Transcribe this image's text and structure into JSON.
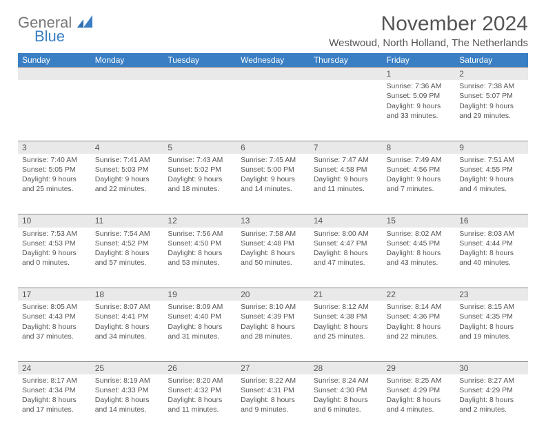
{
  "logo": {
    "word1": "General",
    "word2": "Blue",
    "gray": "#777777",
    "blue": "#3a7fc4"
  },
  "title": "November 2024",
  "location": "Westwoud, North Holland, The Netherlands",
  "colors": {
    "header_bg": "#3a7fc4",
    "header_fg": "#ffffff",
    "daynum_bg": "#e9e9e9",
    "daynum_border": "#888888",
    "text": "#555555",
    "background": "#ffffff"
  },
  "weekdays": [
    "Sunday",
    "Monday",
    "Tuesday",
    "Wednesday",
    "Thursday",
    "Friday",
    "Saturday"
  ],
  "weeks": [
    [
      null,
      null,
      null,
      null,
      null,
      {
        "d": "1",
        "sr": "Sunrise: 7:36 AM",
        "ss": "Sunset: 5:09 PM",
        "dl1": "Daylight: 9 hours",
        "dl2": "and 33 minutes."
      },
      {
        "d": "2",
        "sr": "Sunrise: 7:38 AM",
        "ss": "Sunset: 5:07 PM",
        "dl1": "Daylight: 9 hours",
        "dl2": "and 29 minutes."
      }
    ],
    [
      {
        "d": "3",
        "sr": "Sunrise: 7:40 AM",
        "ss": "Sunset: 5:05 PM",
        "dl1": "Daylight: 9 hours",
        "dl2": "and 25 minutes."
      },
      {
        "d": "4",
        "sr": "Sunrise: 7:41 AM",
        "ss": "Sunset: 5:03 PM",
        "dl1": "Daylight: 9 hours",
        "dl2": "and 22 minutes."
      },
      {
        "d": "5",
        "sr": "Sunrise: 7:43 AM",
        "ss": "Sunset: 5:02 PM",
        "dl1": "Daylight: 9 hours",
        "dl2": "and 18 minutes."
      },
      {
        "d": "6",
        "sr": "Sunrise: 7:45 AM",
        "ss": "Sunset: 5:00 PM",
        "dl1": "Daylight: 9 hours",
        "dl2": "and 14 minutes."
      },
      {
        "d": "7",
        "sr": "Sunrise: 7:47 AM",
        "ss": "Sunset: 4:58 PM",
        "dl1": "Daylight: 9 hours",
        "dl2": "and 11 minutes."
      },
      {
        "d": "8",
        "sr": "Sunrise: 7:49 AM",
        "ss": "Sunset: 4:56 PM",
        "dl1": "Daylight: 9 hours",
        "dl2": "and 7 minutes."
      },
      {
        "d": "9",
        "sr": "Sunrise: 7:51 AM",
        "ss": "Sunset: 4:55 PM",
        "dl1": "Daylight: 9 hours",
        "dl2": "and 4 minutes."
      }
    ],
    [
      {
        "d": "10",
        "sr": "Sunrise: 7:53 AM",
        "ss": "Sunset: 4:53 PM",
        "dl1": "Daylight: 9 hours",
        "dl2": "and 0 minutes."
      },
      {
        "d": "11",
        "sr": "Sunrise: 7:54 AM",
        "ss": "Sunset: 4:52 PM",
        "dl1": "Daylight: 8 hours",
        "dl2": "and 57 minutes."
      },
      {
        "d": "12",
        "sr": "Sunrise: 7:56 AM",
        "ss": "Sunset: 4:50 PM",
        "dl1": "Daylight: 8 hours",
        "dl2": "and 53 minutes."
      },
      {
        "d": "13",
        "sr": "Sunrise: 7:58 AM",
        "ss": "Sunset: 4:48 PM",
        "dl1": "Daylight: 8 hours",
        "dl2": "and 50 minutes."
      },
      {
        "d": "14",
        "sr": "Sunrise: 8:00 AM",
        "ss": "Sunset: 4:47 PM",
        "dl1": "Daylight: 8 hours",
        "dl2": "and 47 minutes."
      },
      {
        "d": "15",
        "sr": "Sunrise: 8:02 AM",
        "ss": "Sunset: 4:45 PM",
        "dl1": "Daylight: 8 hours",
        "dl2": "and 43 minutes."
      },
      {
        "d": "16",
        "sr": "Sunrise: 8:03 AM",
        "ss": "Sunset: 4:44 PM",
        "dl1": "Daylight: 8 hours",
        "dl2": "and 40 minutes."
      }
    ],
    [
      {
        "d": "17",
        "sr": "Sunrise: 8:05 AM",
        "ss": "Sunset: 4:43 PM",
        "dl1": "Daylight: 8 hours",
        "dl2": "and 37 minutes."
      },
      {
        "d": "18",
        "sr": "Sunrise: 8:07 AM",
        "ss": "Sunset: 4:41 PM",
        "dl1": "Daylight: 8 hours",
        "dl2": "and 34 minutes."
      },
      {
        "d": "19",
        "sr": "Sunrise: 8:09 AM",
        "ss": "Sunset: 4:40 PM",
        "dl1": "Daylight: 8 hours",
        "dl2": "and 31 minutes."
      },
      {
        "d": "20",
        "sr": "Sunrise: 8:10 AM",
        "ss": "Sunset: 4:39 PM",
        "dl1": "Daylight: 8 hours",
        "dl2": "and 28 minutes."
      },
      {
        "d": "21",
        "sr": "Sunrise: 8:12 AM",
        "ss": "Sunset: 4:38 PM",
        "dl1": "Daylight: 8 hours",
        "dl2": "and 25 minutes."
      },
      {
        "d": "22",
        "sr": "Sunrise: 8:14 AM",
        "ss": "Sunset: 4:36 PM",
        "dl1": "Daylight: 8 hours",
        "dl2": "and 22 minutes."
      },
      {
        "d": "23",
        "sr": "Sunrise: 8:15 AM",
        "ss": "Sunset: 4:35 PM",
        "dl1": "Daylight: 8 hours",
        "dl2": "and 19 minutes."
      }
    ],
    [
      {
        "d": "24",
        "sr": "Sunrise: 8:17 AM",
        "ss": "Sunset: 4:34 PM",
        "dl1": "Daylight: 8 hours",
        "dl2": "and 17 minutes."
      },
      {
        "d": "25",
        "sr": "Sunrise: 8:19 AM",
        "ss": "Sunset: 4:33 PM",
        "dl1": "Daylight: 8 hours",
        "dl2": "and 14 minutes."
      },
      {
        "d": "26",
        "sr": "Sunrise: 8:20 AM",
        "ss": "Sunset: 4:32 PM",
        "dl1": "Daylight: 8 hours",
        "dl2": "and 11 minutes."
      },
      {
        "d": "27",
        "sr": "Sunrise: 8:22 AM",
        "ss": "Sunset: 4:31 PM",
        "dl1": "Daylight: 8 hours",
        "dl2": "and 9 minutes."
      },
      {
        "d": "28",
        "sr": "Sunrise: 8:24 AM",
        "ss": "Sunset: 4:30 PM",
        "dl1": "Daylight: 8 hours",
        "dl2": "and 6 minutes."
      },
      {
        "d": "29",
        "sr": "Sunrise: 8:25 AM",
        "ss": "Sunset: 4:29 PM",
        "dl1": "Daylight: 8 hours",
        "dl2": "and 4 minutes."
      },
      {
        "d": "30",
        "sr": "Sunrise: 8:27 AM",
        "ss": "Sunset: 4:29 PM",
        "dl1": "Daylight: 8 hours",
        "dl2": "and 2 minutes."
      }
    ]
  ]
}
